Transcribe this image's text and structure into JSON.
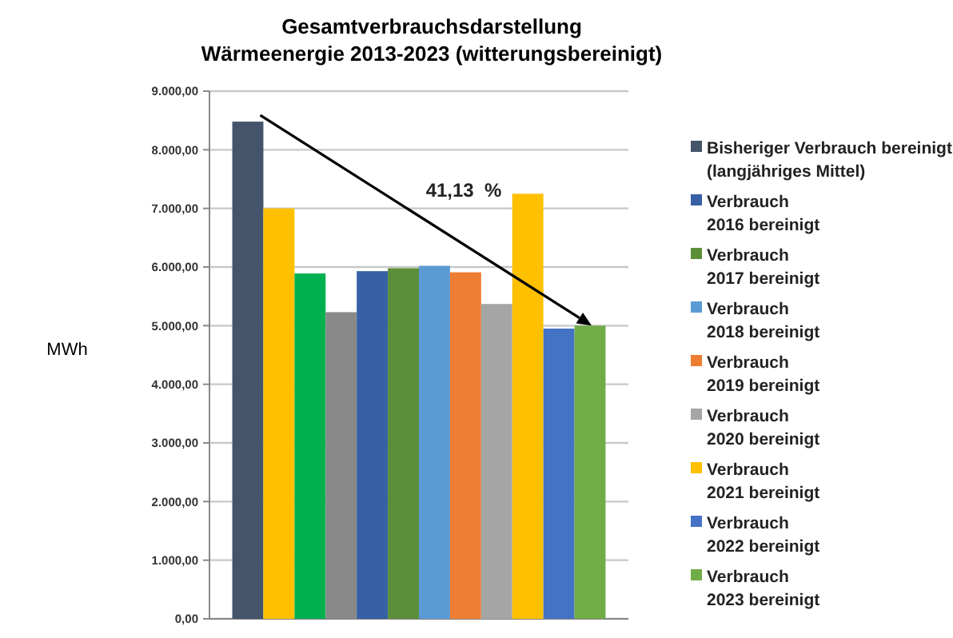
{
  "chart_data": {
    "type": "bar",
    "title": "Gesamtverbrauchsdarstellung\nWärmeenergie 2013-2023 (witterungsbereinigt)",
    "ylabel": "MWh",
    "categories": [
      null
    ],
    "series": [
      {
        "name": "Bisheriger Verbrauch bereinigt\n(langjähriges Mittel)",
        "color": "#44546a",
        "values": [
          8480
        ]
      },
      {
        "color": "#ffc000",
        "values": [
          7000
        ]
      },
      {
        "color": "#00b050",
        "values": [
          5890
        ]
      },
      {
        "color": "#898989",
        "values": [
          5230
        ]
      },
      {
        "name": "Verbrauch\n2016 bereinigt",
        "color": "#3760a6",
        "values": [
          5930
        ]
      },
      {
        "name": "Verbrauch\n2017 bereinigt",
        "color": "#5b8e38",
        "values": [
          5980
        ]
      },
      {
        "name": "Verbrauch\n2018 bereinigt",
        "color": "#5b9bd5",
        "values": [
          6020
        ]
      },
      {
        "name": "Verbrauch\n2019 bereinigt",
        "color": "#ed7d31",
        "values": [
          5910
        ]
      },
      {
        "name": "Verbrauch\n2020 bereinigt",
        "color": "#a5a5a5",
        "values": [
          5370
        ]
      },
      {
        "name": "Verbrauch\n2021 bereinigt",
        "color": "#ffc000",
        "values": [
          7250
        ]
      },
      {
        "name": "Verbrauch\n2022 bereinigt",
        "color": "#4472c4",
        "values": [
          4950
        ]
      },
      {
        "name": "Verbrauch\n2023 bereinigt",
        "color": "#70ad47",
        "values": [
          5000
        ]
      }
    ],
    "ylim": [
      0,
      9000
    ],
    "yticks": [
      {
        "value": 0,
        "label": "0,00"
      },
      {
        "value": 1000,
        "label": "1.000,00"
      },
      {
        "value": 2000,
        "label": "2.000,00"
      },
      {
        "value": 3000,
        "label": "3.000,00"
      },
      {
        "value": 4000,
        "label": "4.000,00"
      },
      {
        "value": 5000,
        "label": "5.000,00"
      },
      {
        "value": 6000,
        "label": "6.000,00"
      },
      {
        "value": 7000,
        "label": "7.000,00"
      },
      {
        "value": 8000,
        "label": "8.000,00"
      },
      {
        "value": 9000,
        "label": "9.000,00"
      }
    ],
    "grid": "y",
    "legend": "right",
    "annotations": [
      "41,13  %"
    ]
  }
}
